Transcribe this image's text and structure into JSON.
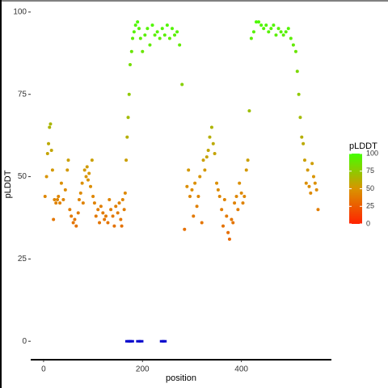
{
  "chart_data": {
    "type": "scatter",
    "x_label": "position",
    "y_label": "pLDDT",
    "xlim": [
      -26,
      582
    ],
    "ylim": [
      -5.6,
      101.2
    ],
    "xticks": [
      0,
      200,
      400
    ],
    "yticks": [
      0,
      25,
      50,
      75,
      100
    ],
    "grid": false,
    "legend_title": "pLDDT",
    "legend_ticks": [
      0,
      25,
      50,
      75,
      100
    ],
    "colorscale": [
      {
        "value": 0,
        "color": "#ff2200"
      },
      {
        "value": 50,
        "color": "#d99400"
      },
      {
        "value": 100,
        "color": "#44ff00"
      }
    ],
    "series": [
      {
        "x": [
          3,
          6,
          8,
          10,
          12,
          14,
          16,
          18,
          20,
          22,
          25,
          28,
          30,
          33,
          36,
          40,
          44,
          48,
          50,
          53,
          56,
          60,
          63,
          66,
          70,
          72,
          75,
          78,
          80,
          83,
          86,
          88,
          90,
          92,
          95,
          98,
          100,
          103,
          106,
          110,
          113,
          116,
          120,
          123,
          126,
          130,
          133,
          136,
          140,
          143,
          146,
          150,
          153,
          156,
          158,
          160,
          163,
          165,
          167,
          169,
          171,
          173,
          175,
          178,
          180,
          183,
          186,
          190,
          193,
          196,
          200,
          205,
          210,
          215,
          220,
          225,
          230,
          235,
          240,
          245,
          250,
          255,
          260,
          265,
          270,
          275,
          280,
          285,
          290,
          293,
          296,
          300,
          303,
          306,
          310,
          313,
          316,
          320,
          323,
          326,
          330,
          333,
          336,
          340,
          343,
          346,
          350,
          353,
          356,
          360,
          363,
          366,
          370,
          373,
          376,
          380,
          383,
          386,
          390,
          393,
          396,
          400,
          403,
          406,
          410,
          413,
          416,
          420,
          425,
          430,
          435,
          440,
          445,
          450,
          455,
          460,
          465,
          470,
          475,
          480,
          485,
          490,
          495,
          500,
          505,
          510,
          513,
          516,
          519,
          522,
          525,
          528,
          531,
          534,
          537,
          540,
          543,
          546,
          549,
          552,
          555
        ],
        "values": [
          44,
          50,
          57,
          60,
          65,
          66,
          58,
          52,
          37,
          43,
          42,
          43,
          44,
          42,
          48,
          43,
          46,
          52,
          55,
          40,
          38,
          36,
          37,
          35,
          39,
          43,
          45,
          48,
          42,
          52,
          50,
          53,
          49,
          51,
          47,
          55,
          44,
          42,
          38,
          40,
          36,
          41,
          39,
          37,
          38,
          36,
          43,
          40,
          38,
          35,
          41,
          39,
          42,
          37,
          35,
          43,
          40,
          45,
          55,
          62,
          68,
          75,
          84,
          88,
          92,
          94,
          96,
          97,
          95,
          92,
          88,
          93,
          95,
          90,
          96,
          93,
          94,
          92,
          95,
          93,
          96,
          92,
          95,
          93,
          94,
          90,
          78,
          34,
          47,
          52,
          44,
          46,
          38,
          48,
          41,
          44,
          50,
          36,
          55,
          52,
          56,
          58,
          62,
          65,
          60,
          57,
          48,
          46,
          44,
          40,
          35,
          43,
          38,
          33,
          31,
          37,
          36,
          42,
          44,
          40,
          48,
          45,
          42,
          44,
          52,
          55,
          70,
          92,
          94,
          97,
          97,
          96,
          95,
          96,
          94,
          95,
          96,
          93,
          95,
          94,
          93,
          94,
          95,
          92,
          90,
          88,
          82,
          75,
          68,
          62,
          60,
          55,
          48,
          52,
          47,
          45,
          54,
          50,
          48,
          46,
          40
        ]
      },
      {
        "color": "#0000cc",
        "x": [
          170,
          174,
          178,
          192,
          197,
          240,
          244
        ],
        "values": [
          0,
          0,
          0,
          0,
          0,
          0,
          0
        ]
      }
    ]
  }
}
